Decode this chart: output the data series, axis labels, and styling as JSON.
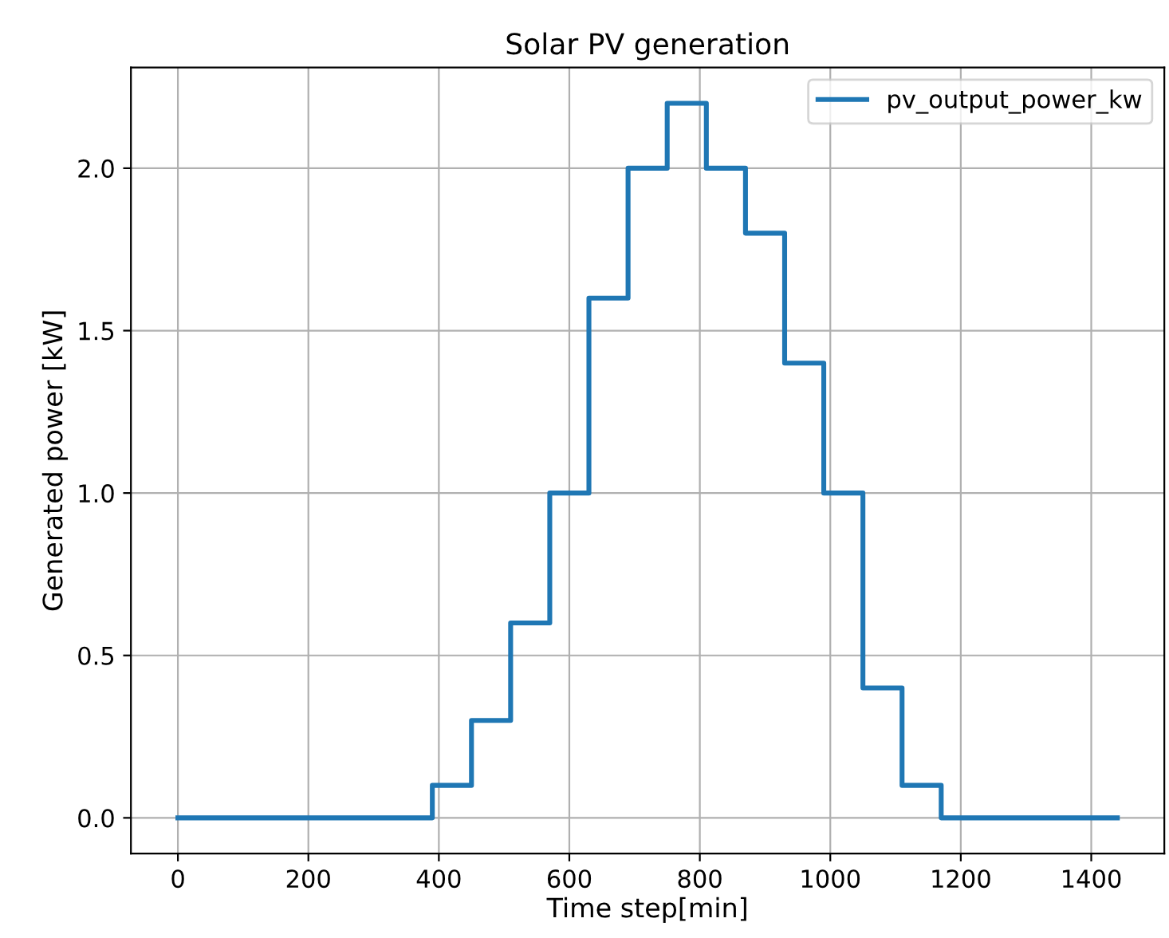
{
  "chart_data": {
    "type": "step",
    "title": "Solar PV generation",
    "xlabel": "Time step[min]",
    "ylabel": "Generated power [kW]",
    "x": [
      0,
      390,
      450,
      510,
      570,
      630,
      690,
      750,
      810,
      870,
      930,
      990,
      1050,
      1110,
      1170,
      1440
    ],
    "series": [
      {
        "name": "pv_output_power_kw",
        "color": "#1f77b4",
        "values": [
          0,
          0.1,
          0.3,
          0.6,
          1.0,
          1.6,
          2.0,
          2.2,
          2.0,
          1.8,
          1.4,
          1.0,
          0.4,
          0.1,
          0,
          0
        ]
      }
    ],
    "xlim": [
      -72,
      1512
    ],
    "ylim": [
      -0.11,
      2.31
    ],
    "xticks": [
      0,
      200,
      400,
      600,
      800,
      1000,
      1200,
      1400
    ],
    "yticks": [
      {
        "value": 0,
        "label": "0.0"
      },
      {
        "value": 0.5,
        "label": "0.5"
      },
      {
        "value": 1.0,
        "label": "1.0"
      },
      {
        "value": 1.5,
        "label": "1.5"
      },
      {
        "value": 2.0,
        "label": "2.0"
      }
    ],
    "grid": true,
    "legend": "top right",
    "line_style": "solid",
    "marker": "none"
  }
}
